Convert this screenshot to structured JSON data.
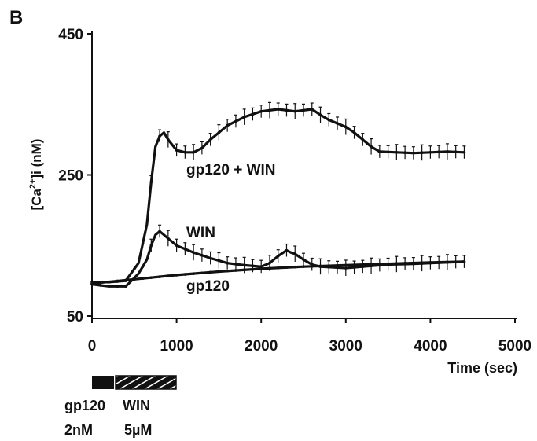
{
  "panel_label": "B",
  "chart_data": {
    "type": "line",
    "xlabel": "Time (sec)",
    "ylabel_parts": {
      "pre": "[Ca",
      "sup": "2+",
      "post": "]i (nM)"
    },
    "xlim": [
      0,
      5000
    ],
    "ylim": [
      50,
      450
    ],
    "x_ticks": [
      0,
      1000,
      2000,
      3000,
      4000,
      5000
    ],
    "y_ticks": [
      50,
      250,
      450
    ],
    "grid": false,
    "series": [
      {
        "name": "gp120 + WIN",
        "error_bars": true,
        "x": [
          0,
          200,
          400,
          550,
          650,
          700,
          750,
          800,
          850,
          900,
          1000,
          1100,
          1200,
          1300,
          1400,
          1500,
          1600,
          1800,
          2000,
          2200,
          2400,
          2600,
          2700,
          2800,
          3000,
          3100,
          3200,
          3300,
          3400,
          3600,
          3800,
          4000,
          4200,
          4400
        ],
        "y": [
          98,
          98,
          100,
          125,
          180,
          240,
          290,
          305,
          310,
          300,
          285,
          282,
          282,
          288,
          300,
          310,
          320,
          332,
          340,
          343,
          340,
          343,
          335,
          328,
          318,
          310,
          300,
          290,
          283,
          282,
          281,
          282,
          283,
          282
        ]
      },
      {
        "name": "WIN",
        "error_bars": true,
        "x": [
          0,
          200,
          400,
          550,
          650,
          700,
          750,
          800,
          850,
          900,
          1000,
          1200,
          1400,
          1600,
          1800,
          2000,
          2100,
          2200,
          2300,
          2350,
          2400,
          2500,
          2600,
          2700,
          3000,
          3200,
          3500,
          3800,
          4000,
          4200,
          4400
        ],
        "y": [
          95,
          92,
          92,
          110,
          130,
          150,
          165,
          170,
          165,
          160,
          150,
          140,
          132,
          125,
          122,
          120,
          125,
          135,
          143,
          140,
          138,
          130,
          123,
          120,
          118,
          120,
          123,
          124,
          125,
          126,
          127
        ]
      },
      {
        "name": "gp120",
        "error_bars": false,
        "x": [
          0,
          500,
          1000,
          1500,
          2000,
          2500,
          3000,
          3500,
          4000,
          4400
        ],
        "y": [
          96,
          102,
          108,
          113,
          117,
          120,
          122,
          124,
          126,
          127
        ]
      }
    ]
  },
  "treatments": [
    {
      "name": "gp120",
      "dose": "2nM",
      "bar_style": "solid"
    },
    {
      "name": "WIN",
      "dose": "5µM",
      "bar_style": "hatched"
    }
  ]
}
